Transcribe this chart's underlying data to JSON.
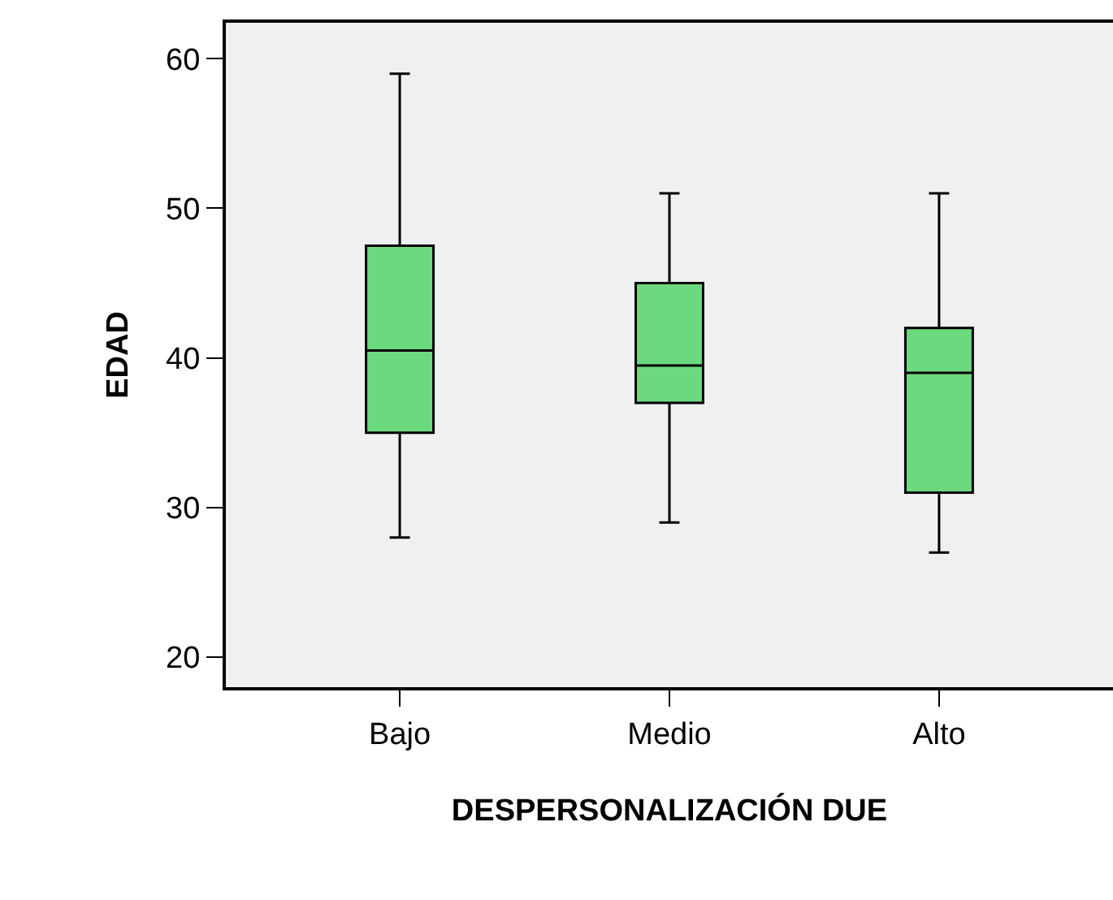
{
  "chart_data": {
    "type": "box",
    "xlabel": "DESPERSONALIZACIÓN DUE",
    "ylabel": "EDAD",
    "categories": [
      "Bajo",
      "Medio",
      "Alto"
    ],
    "color": "#6cd97e",
    "boxes": [
      {
        "low": 28,
        "q1": 35,
        "median": 40.5,
        "q3": 47.5,
        "high": 59
      },
      {
        "low": 29,
        "q1": 37,
        "median": 39.5,
        "q3": 45,
        "high": 51
      },
      {
        "low": 27,
        "q1": 31,
        "median": 39,
        "q3": 42,
        "high": 51
      }
    ],
    "ylim": [
      18,
      62.4
    ],
    "yticks": [
      20,
      30,
      40,
      50,
      60
    ]
  }
}
